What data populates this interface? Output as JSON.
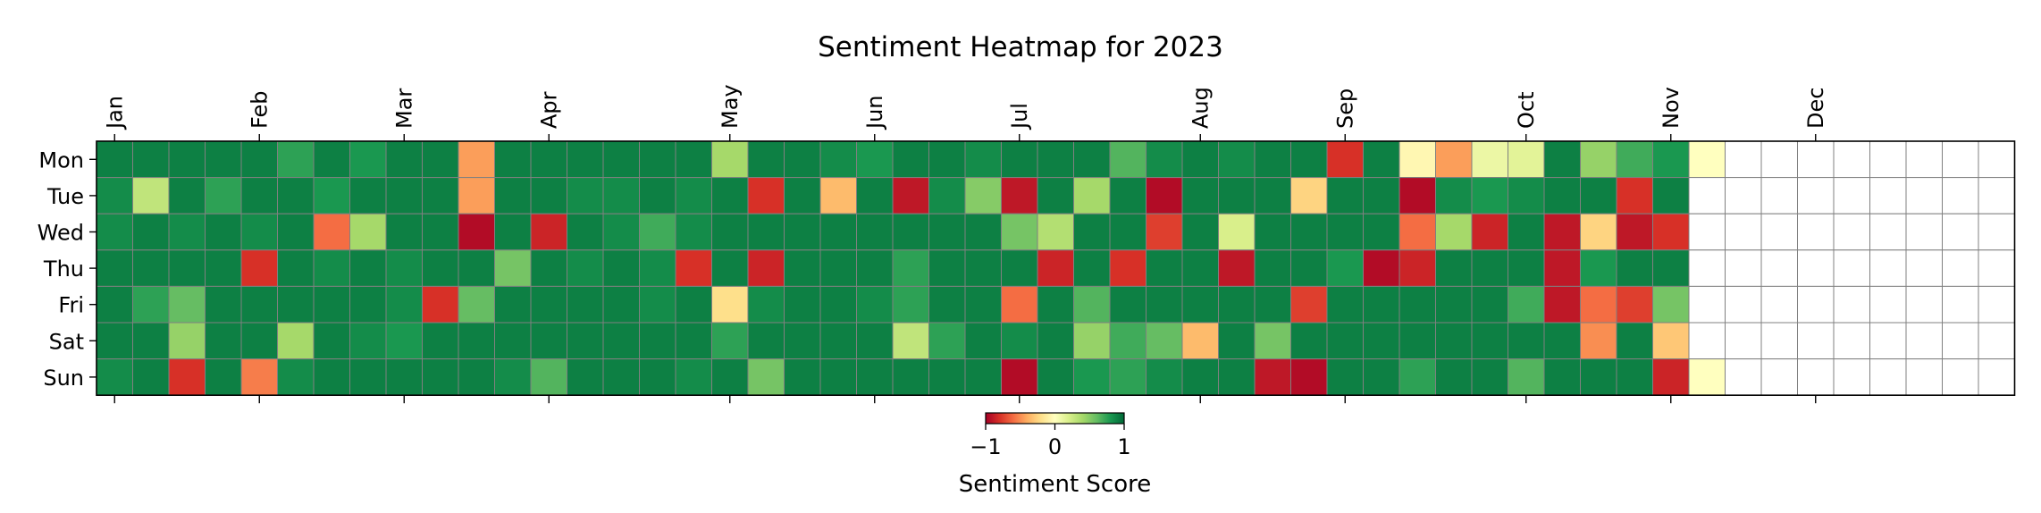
{
  "chart_data": {
    "type": "heatmap",
    "title": "Sentiment Heatmap for 2023",
    "month_labels": [
      "Jan",
      "Feb",
      "Mar",
      "Apr",
      "May",
      "Jun",
      "Jul",
      "Aug",
      "Sep",
      "Oct",
      "Nov",
      "Dec"
    ],
    "month_start_weeks": [
      0,
      4,
      8,
      12,
      17,
      21,
      25,
      30,
      34,
      39,
      43,
      47
    ],
    "day_labels": [
      "Mon",
      "Tue",
      "Wed",
      "Thu",
      "Fri",
      "Sat",
      "Sun"
    ],
    "weeks": 53,
    "colorbar": {
      "label": "Sentiment Score",
      "ticks": [
        "−1",
        "0",
        "1"
      ],
      "range": [
        -1,
        1
      ],
      "colors": [
        "#a50026",
        "#d73027",
        "#f46d43",
        "#fdae61",
        "#fee08b",
        "#ffffbf",
        "#d9ef8b",
        "#a6d96a",
        "#66bd63",
        "#1a9850",
        "#006837"
      ]
    },
    "grid": true,
    "legend": "bottom-center",
    "note_values": "values[d][w] = sentiment score for day d (Mon..Sun) of week w; null = no data (shown white). Estimated from cell colors.",
    "values": [
      [
        0.9,
        0.9,
        0.9,
        0.9,
        0.9,
        0.75,
        0.9,
        0.8,
        0.9,
        0.9,
        -0.45,
        0.9,
        0.9,
        0.9,
        0.9,
        0.9,
        0.9,
        0.4,
        0.9,
        0.9,
        0.85,
        0.8,
        0.9,
        0.9,
        0.85,
        0.9,
        0.9,
        0.9,
        0.65,
        0.85,
        0.9,
        0.85,
        0.9,
        0.9,
        -0.8,
        0.9,
        -0.05,
        -0.45,
        0.1,
        0.15,
        0.9,
        0.45,
        0.7,
        0.8,
        0.0,
        null,
        null,
        null,
        null,
        null,
        null,
        null,
        null
      ],
      [
        0.85,
        0.3,
        0.9,
        0.75,
        0.9,
        0.9,
        0.8,
        0.9,
        0.9,
        0.9,
        -0.45,
        0.9,
        0.9,
        0.85,
        0.85,
        0.9,
        0.85,
        0.9,
        -0.8,
        0.9,
        -0.35,
        0.9,
        -0.9,
        0.85,
        0.5,
        -0.9,
        0.9,
        0.4,
        0.9,
        -0.95,
        0.9,
        0.9,
        0.9,
        -0.25,
        0.9,
        0.9,
        -0.95,
        0.85,
        0.8,
        0.85,
        0.9,
        0.9,
        -0.8,
        0.9,
        null,
        null,
        null,
        null,
        null,
        null,
        null,
        null,
        null
      ],
      [
        0.85,
        0.9,
        0.85,
        0.9,
        0.85,
        0.9,
        -0.6,
        0.4,
        0.9,
        0.9,
        -0.95,
        0.9,
        -0.85,
        0.9,
        0.85,
        0.7,
        0.85,
        0.9,
        0.9,
        0.9,
        0.9,
        0.9,
        0.9,
        0.9,
        0.9,
        0.55,
        0.35,
        0.9,
        0.9,
        -0.75,
        0.9,
        0.2,
        0.9,
        0.9,
        0.9,
        0.9,
        -0.6,
        0.4,
        -0.85,
        0.9,
        -0.9,
        -0.25,
        -0.9,
        -0.8,
        null,
        null,
        null,
        null,
        null,
        null,
        null,
        null,
        null
      ],
      [
        0.9,
        0.9,
        0.9,
        0.9,
        -0.8,
        0.9,
        0.85,
        0.9,
        0.85,
        0.9,
        0.9,
        0.55,
        0.9,
        0.85,
        0.9,
        0.85,
        -0.8,
        0.9,
        -0.85,
        0.9,
        0.9,
        0.9,
        0.75,
        0.9,
        0.9,
        0.9,
        -0.85,
        0.9,
        -0.8,
        0.9,
        0.9,
        -0.9,
        0.9,
        0.9,
        0.8,
        -0.95,
        -0.85,
        0.9,
        0.9,
        0.9,
        -0.9,
        0.8,
        0.9,
        0.9,
        null,
        null,
        null,
        null,
        null,
        null,
        null,
        null,
        null
      ],
      [
        0.9,
        0.75,
        0.6,
        0.9,
        0.9,
        0.9,
        0.9,
        0.9,
        0.85,
        -0.8,
        0.6,
        0.9,
        0.9,
        0.9,
        0.9,
        0.85,
        0.9,
        -0.2,
        0.85,
        0.9,
        0.9,
        0.85,
        0.75,
        0.9,
        0.9,
        -0.6,
        0.9,
        0.65,
        0.9,
        0.9,
        0.9,
        0.9,
        0.9,
        -0.75,
        0.9,
        0.9,
        0.9,
        0.9,
        0.9,
        0.7,
        -0.9,
        -0.6,
        -0.75,
        0.55,
        null,
        null,
        null,
        null,
        null,
        null,
        null,
        null,
        null
      ],
      [
        0.9,
        0.9,
        0.45,
        0.9,
        0.9,
        0.4,
        0.9,
        0.85,
        0.8,
        0.9,
        0.9,
        0.9,
        0.9,
        0.9,
        0.9,
        0.9,
        0.9,
        0.75,
        0.9,
        0.9,
        0.9,
        0.9,
        0.3,
        0.75,
        0.9,
        0.85,
        0.9,
        0.45,
        0.7,
        0.6,
        -0.35,
        0.9,
        0.55,
        0.9,
        0.9,
        0.9,
        0.9,
        0.9,
        0.9,
        0.9,
        0.9,
        -0.5,
        0.9,
        -0.3,
        null,
        null,
        null,
        null,
        null,
        null,
        null,
        null,
        null
      ],
      [
        0.85,
        0.9,
        -0.8,
        0.9,
        -0.55,
        0.85,
        0.9,
        0.9,
        0.9,
        0.9,
        0.9,
        0.85,
        0.65,
        0.9,
        0.9,
        0.9,
        0.85,
        0.9,
        0.55,
        0.9,
        0.9,
        0.9,
        0.9,
        0.9,
        0.9,
        -0.95,
        0.9,
        0.8,
        0.75,
        0.85,
        0.9,
        0.9,
        -0.9,
        -0.95,
        0.9,
        0.9,
        0.75,
        0.9,
        0.9,
        0.65,
        0.9,
        0.9,
        0.9,
        -0.85,
        0.0,
        null,
        null,
        null,
        null,
        null,
        null,
        null,
        null
      ]
    ]
  }
}
